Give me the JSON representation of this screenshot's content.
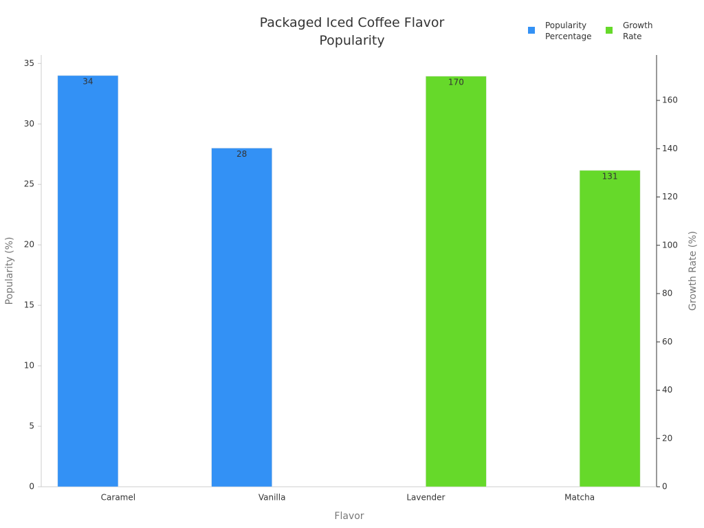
{
  "chart_data": {
    "type": "bar",
    "title": "Packaged Iced Coffee Flavor Popularity",
    "x_label": "Flavor",
    "y_label": "Popularity (%)",
    "y2_label": "Growth Rate (%)",
    "categories": [
      "Caramel",
      "Vanilla",
      "Lavender",
      "Matcha"
    ],
    "series": [
      {
        "name": "Popularity Percentage",
        "color": "#3391f5",
        "values": [
          34,
          28,
          null,
          null
        ]
      },
      {
        "name": "Growth Rate",
        "color": "#66d92a",
        "values": [
          null,
          null,
          170,
          131
        ],
        "axis": "y2"
      }
    ],
    "ylim": [
      0,
      35.7
    ],
    "yticks": [
      0,
      5,
      10,
      15,
      20,
      25,
      30,
      35
    ],
    "y2lim": [
      0,
      178.8
    ],
    "y2ticks": [
      0,
      20,
      40,
      60,
      80,
      100,
      120,
      140,
      160
    ],
    "legend": "top-right"
  }
}
